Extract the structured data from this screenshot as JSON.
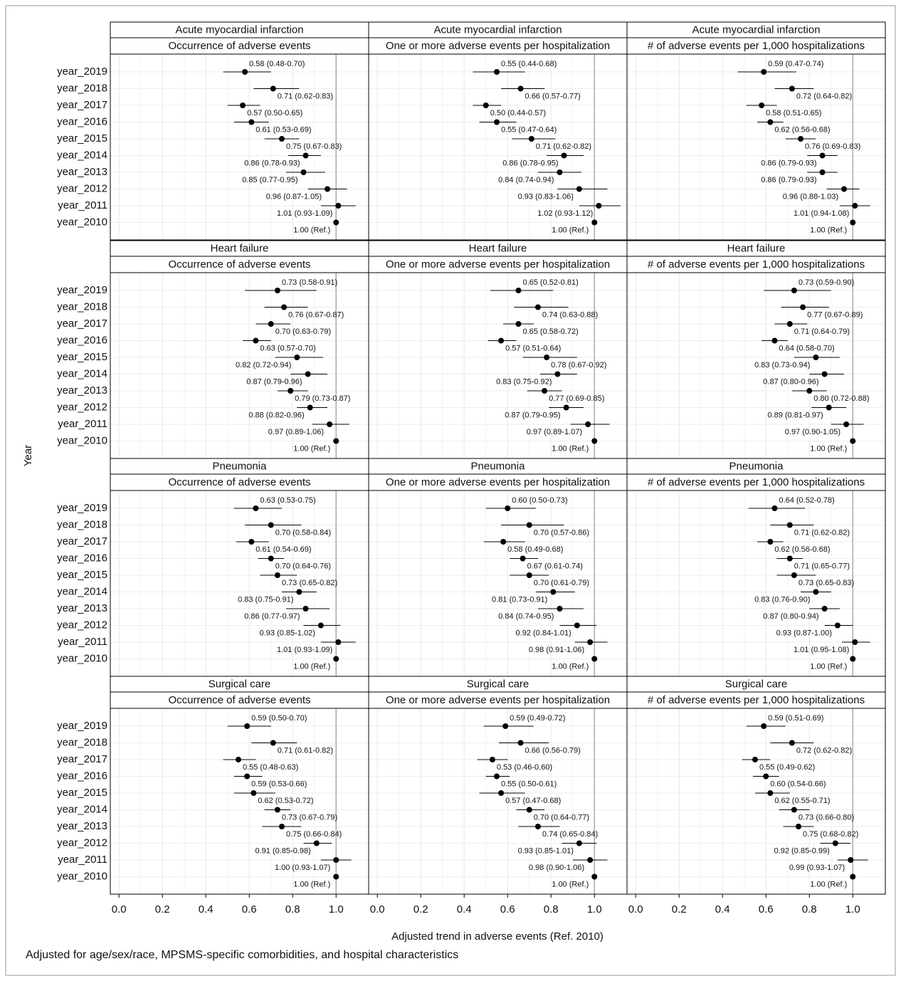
{
  "chart_data": {
    "type": "forest",
    "ylabel": "Year",
    "xlabel": "Adjusted trend in adverse events (Ref. 2010)",
    "note": "Adjusted for age/sex/race, MPSMS-specific comorbidities, and hospital characteristics",
    "categories": [
      "year_2019",
      "year_2018",
      "year_2017",
      "year_2016",
      "year_2015",
      "year_2014",
      "year_2013",
      "year_2012",
      "year_2011",
      "year_2010"
    ],
    "xlim": [
      -0.04,
      1.15
    ],
    "xticks": [
      {
        "value": 0,
        "label": "0.0"
      },
      {
        "value": 0.2,
        "label": "0.2"
      },
      {
        "value": 0.4,
        "label": "0.4"
      },
      {
        "value": 0.6,
        "label": "0.6"
      },
      {
        "value": 0.8,
        "label": "0.8"
      },
      {
        "value": 1,
        "label": "1.0"
      }
    ],
    "reference": 1,
    "grid": true,
    "color": "#000000",
    "facets": [
      {
        "title": "Acute myocardial infarction",
        "subtitle": "Occurrence of adverse events",
        "values": [
          0.58,
          0.71,
          0.57,
          0.61,
          0.75,
          0.86,
          0.85,
          0.96,
          1.01,
          1.0
        ],
        "lower": [
          0.48,
          0.62,
          0.5,
          0.53,
          0.67,
          0.78,
          0.77,
          0.87,
          0.93,
          null
        ],
        "upper": [
          0.7,
          0.83,
          0.65,
          0.69,
          0.83,
          0.93,
          0.95,
          1.05,
          1.09,
          null
        ],
        "value_labels": [
          "0.58 (0.48-0.70)",
          "0.71 (0.62-0.83)",
          "0.57 (0.50-0.65)",
          "0.61 (0.53-0.69)",
          "0.75 (0.67-0.83)",
          "0.86 (0.78-0.93)",
          "0.85 (0.77-0.95)",
          "0.96 (0.87-1.05)",
          "1.01 (0.93-1.09)",
          "1.00 (Ref.)"
        ]
      },
      {
        "title": "Acute myocardial infarction",
        "subtitle": "One or more adverse events per hospitalization",
        "values": [
          0.55,
          0.66,
          0.5,
          0.55,
          0.71,
          0.86,
          0.84,
          0.93,
          1.02,
          1.0
        ],
        "lower": [
          0.44,
          0.57,
          0.44,
          0.47,
          0.62,
          0.78,
          0.74,
          0.83,
          0.93,
          null
        ],
        "upper": [
          0.68,
          0.77,
          0.57,
          0.64,
          0.82,
          0.95,
          0.94,
          1.06,
          1.12,
          null
        ],
        "value_labels": [
          "0.55 (0.44-0.68)",
          "0.66 (0.57-0.77)",
          "0.50 (0.44-0.57)",
          "0.55 (0.47-0.64)",
          "0.71 (0.62-0.82)",
          "0.86 (0.78-0.95)",
          "0.84 (0.74-0.94)",
          "0.93 (0.83-1.06)",
          "1.02 (0.93-1.12)",
          "1.00 (Ref.)"
        ]
      },
      {
        "title": "Acute myocardial infarction",
        "subtitle": "# of adverse events per 1,000 hospitalizations",
        "values": [
          0.59,
          0.72,
          0.58,
          0.62,
          0.76,
          0.86,
          0.86,
          0.96,
          1.01,
          1.0
        ],
        "lower": [
          0.47,
          0.64,
          0.51,
          0.56,
          0.69,
          0.79,
          0.79,
          0.88,
          0.94,
          null
        ],
        "upper": [
          0.74,
          0.82,
          0.65,
          0.68,
          0.83,
          0.93,
          0.93,
          1.03,
          1.08,
          null
        ],
        "value_labels": [
          "0.59 (0.47-0.74)",
          "0.72 (0.64-0.82)",
          "0.58 (0.51-0.65)",
          "0.62 (0.56-0.68)",
          "0.76 (0.69-0.83)",
          "0.86 (0.79-0.93)",
          "0.86 (0.79-0.93)",
          "0.96 (0.88-1.03)",
          "1.01 (0.94-1.08)",
          "1.00 (Ref.)"
        ]
      },
      {
        "title": "Heart failure",
        "subtitle": "Occurrence of adverse events",
        "values": [
          0.73,
          0.76,
          0.7,
          0.63,
          0.82,
          0.87,
          0.79,
          0.88,
          0.97,
          1.0
        ],
        "lower": [
          0.58,
          0.67,
          0.63,
          0.57,
          0.72,
          0.79,
          0.73,
          0.82,
          0.89,
          null
        ],
        "upper": [
          0.91,
          0.87,
          0.79,
          0.7,
          0.94,
          0.96,
          0.87,
          0.96,
          1.06,
          null
        ],
        "value_labels": [
          "0.73 (0.58-0.91)",
          "0.76 (0.67-0.87)",
          "0.70 (0.63-0.79)",
          "0.63 (0.57-0.70)",
          "0.82 (0.72-0.94)",
          "0.87 (0.79-0.96)",
          "0.79 (0.73-0.87)",
          "0.88 (0.82-0.96)",
          "0.97 (0.89-1.06)",
          "1.00 (Ref.)"
        ]
      },
      {
        "title": "Heart failure",
        "subtitle": "One or more adverse events per hospitalization",
        "values": [
          0.65,
          0.74,
          0.65,
          0.57,
          0.78,
          0.83,
          0.77,
          0.87,
          0.97,
          1.0
        ],
        "lower": [
          0.52,
          0.63,
          0.58,
          0.51,
          0.67,
          0.75,
          0.69,
          0.79,
          0.89,
          null
        ],
        "upper": [
          0.81,
          0.88,
          0.72,
          0.64,
          0.92,
          0.92,
          0.85,
          0.95,
          1.07,
          null
        ],
        "value_labels": [
          "0.65 (0.52-0.81)",
          "0.74 (0.63-0.88)",
          "0.65 (0.58-0.72)",
          "0.57 (0.51-0.64)",
          "0.78 (0.67-0.92)",
          "0.83 (0.75-0.92)",
          "0.77 (0.69-0.85)",
          "0.87 (0.79-0.95)",
          "0.97 (0.89-1.07)",
          "1.00 (Ref.)"
        ]
      },
      {
        "title": "Heart failure",
        "subtitle": "# of adverse events per 1,000 hospitalizations",
        "values": [
          0.73,
          0.77,
          0.71,
          0.64,
          0.83,
          0.87,
          0.8,
          0.89,
          0.97,
          1.0
        ],
        "lower": [
          0.59,
          0.67,
          0.64,
          0.58,
          0.73,
          0.8,
          0.72,
          0.81,
          0.9,
          null
        ],
        "upper": [
          0.9,
          0.89,
          0.79,
          0.7,
          0.94,
          0.96,
          0.88,
          0.97,
          1.05,
          null
        ],
        "value_labels": [
          "0.73 (0.59-0.90)",
          "0.77 (0.67-0.89)",
          "0.71 (0.64-0.79)",
          "0.64 (0.58-0.70)",
          "0.83 (0.73-0.94)",
          "0.87 (0.80-0.96)",
          "0.80 (0.72-0.88)",
          "0.89 (0.81-0.97)",
          "0.97 (0.90-1.05)",
          "1.00 (Ref.)"
        ]
      },
      {
        "title": "Pneumonia",
        "subtitle": "Occurrence of adverse events",
        "values": [
          0.63,
          0.7,
          0.61,
          0.7,
          0.73,
          0.83,
          0.86,
          0.93,
          1.01,
          1.0
        ],
        "lower": [
          0.53,
          0.58,
          0.54,
          0.64,
          0.65,
          0.75,
          0.77,
          0.85,
          0.93,
          null
        ],
        "upper": [
          0.75,
          0.84,
          0.69,
          0.76,
          0.82,
          0.91,
          0.97,
          1.02,
          1.09,
          null
        ],
        "value_labels": [
          "0.63 (0.53-0.75)",
          "0.70 (0.58-0.84)",
          "0.61 (0.54-0.69)",
          "0.70 (0.64-0.76)",
          "0.73 (0.65-0.82)",
          "0.83 (0.75-0.91)",
          "0.86 (0.77-0.97)",
          "0.93 (0.85-1.02)",
          "1.01 (0.93-1.09)",
          "1.00 (Ref.)"
        ]
      },
      {
        "title": "Pneumonia",
        "subtitle": "One or more adverse events per hospitalization",
        "values": [
          0.6,
          0.7,
          0.58,
          0.67,
          0.7,
          0.81,
          0.84,
          0.92,
          0.98,
          1.0
        ],
        "lower": [
          0.5,
          0.57,
          0.49,
          0.61,
          0.61,
          0.73,
          0.74,
          0.84,
          0.91,
          null
        ],
        "upper": [
          0.73,
          0.86,
          0.68,
          0.74,
          0.79,
          0.91,
          0.95,
          1.01,
          1.06,
          null
        ],
        "value_labels": [
          "0.60 (0.50-0.73)",
          "0.70 (0.57-0.86)",
          "0.58 (0.49-0.68)",
          "0.67 (0.61-0.74)",
          "0.70 (0.61-0.79)",
          "0.81 (0.73-0.91)",
          "0.84 (0.74-0.95)",
          "0.92 (0.84-1.01)",
          "0.98 (0.91-1.06)",
          "1.00 (Ref.)"
        ]
      },
      {
        "title": "Pneumonia",
        "subtitle": "# of adverse events per 1,000 hospitalizations",
        "values": [
          0.64,
          0.71,
          0.62,
          0.71,
          0.73,
          0.83,
          0.87,
          0.93,
          1.01,
          1.0
        ],
        "lower": [
          0.52,
          0.62,
          0.56,
          0.65,
          0.65,
          0.76,
          0.8,
          0.87,
          0.95,
          null
        ],
        "upper": [
          0.78,
          0.82,
          0.68,
          0.77,
          0.83,
          0.9,
          0.94,
          1.0,
          1.08,
          null
        ],
        "value_labels": [
          "0.64 (0.52-0.78)",
          "0.71 (0.62-0.82)",
          "0.62 (0.56-0.68)",
          "0.71 (0.65-0.77)",
          "0.73 (0.65-0.83)",
          "0.83 (0.76-0.90)",
          "0.87 (0.80-0.94)",
          "0.93 (0.87-1.00)",
          "1.01 (0.95-1.08)",
          "1.00 (Ref.)"
        ]
      },
      {
        "title": "Surgical care",
        "subtitle": "Occurrence of adverse events",
        "values": [
          0.59,
          0.71,
          0.55,
          0.59,
          0.62,
          0.73,
          0.75,
          0.91,
          1.0,
          1.0
        ],
        "lower": [
          0.5,
          0.61,
          0.48,
          0.53,
          0.53,
          0.67,
          0.66,
          0.85,
          0.93,
          null
        ],
        "upper": [
          0.7,
          0.82,
          0.63,
          0.66,
          0.72,
          0.79,
          0.84,
          0.98,
          1.07,
          null
        ],
        "value_labels": [
          "0.59 (0.50-0.70)",
          "0.71 (0.61-0.82)",
          "0.55 (0.48-0.63)",
          "0.59 (0.53-0.66)",
          "0.62 (0.53-0.72)",
          "0.73 (0.67-0.79)",
          "0.75 (0.66-0.84)",
          "0.91 (0.85-0.98)",
          "1.00 (0.93-1.07)",
          "1.00 (Ref.)"
        ]
      },
      {
        "title": "Surgical care",
        "subtitle": "One or more adverse events per hospitalization",
        "values": [
          0.59,
          0.66,
          0.53,
          0.55,
          0.57,
          0.7,
          0.74,
          0.93,
          0.98,
          1.0
        ],
        "lower": [
          0.49,
          0.56,
          0.46,
          0.5,
          0.47,
          0.64,
          0.65,
          0.85,
          0.9,
          null
        ],
        "upper": [
          0.72,
          0.79,
          0.6,
          0.61,
          0.68,
          0.77,
          0.84,
          1.01,
          1.06,
          null
        ],
        "value_labels": [
          "0.59 (0.49-0.72)",
          "0.66 (0.56-0.79)",
          "0.53 (0.46-0.60)",
          "0.55 (0.50-0.61)",
          "0.57 (0.47-0.68)",
          "0.70 (0.64-0.77)",
          "0.74 (0.65-0.84)",
          "0.93 (0.85-1.01)",
          "0.98 (0.90-1.06)",
          "1.00 (Ref.)"
        ]
      },
      {
        "title": "Surgical care",
        "subtitle": "# of adverse events per 1,000 hospitalizations",
        "values": [
          0.59,
          0.72,
          0.55,
          0.6,
          0.62,
          0.73,
          0.75,
          0.92,
          0.99,
          1.0
        ],
        "lower": [
          0.51,
          0.62,
          0.49,
          0.54,
          0.55,
          0.66,
          0.68,
          0.85,
          0.93,
          null
        ],
        "upper": [
          0.69,
          0.82,
          0.62,
          0.66,
          0.71,
          0.8,
          0.82,
          0.99,
          1.07,
          null
        ],
        "value_labels": [
          "0.59 (0.51-0.69)",
          "0.72 (0.62-0.82)",
          "0.55 (0.49-0.62)",
          "0.60 (0.54-0.66)",
          "0.62 (0.55-0.71)",
          "0.73 (0.66-0.80)",
          "0.75 (0.68-0.82)",
          "0.92 (0.85-0.99)",
          "0.99 (0.93-1.07)",
          "1.00 (Ref.)"
        ]
      }
    ]
  }
}
